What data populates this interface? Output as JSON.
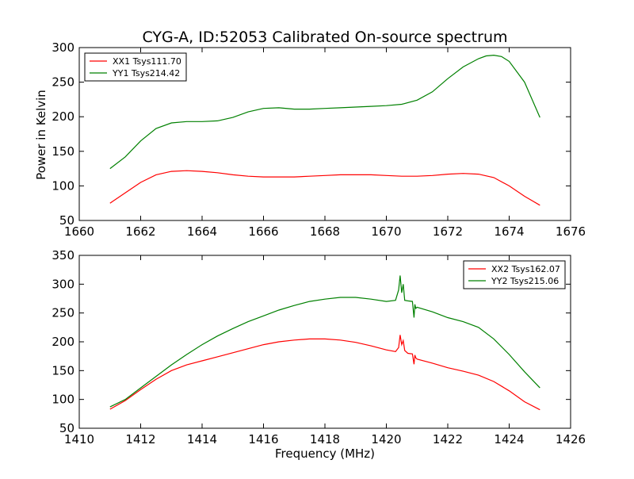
{
  "figure": {
    "title": "CYG-A, ID:52053 Calibrated On-source spectrum",
    "ylabel": "Power in Kelvin",
    "xlabel": "Frequency (MHz)"
  },
  "colors": {
    "xx": "#ff0000",
    "yy": "#008000",
    "axis": "#000000",
    "background": "#ffffff"
  },
  "chart_data": [
    {
      "type": "line",
      "xlim": [
        1660,
        1676
      ],
      "ylim": [
        50,
        300
      ],
      "xticks": [
        1660,
        1662,
        1664,
        1666,
        1668,
        1670,
        1672,
        1674,
        1676
      ],
      "yticks": [
        50,
        100,
        150,
        200,
        250,
        300
      ],
      "legend": "top-left",
      "series": [
        {
          "name": "XX1 Tsys111.70",
          "color": "#ff0000",
          "x": [
            1661.0,
            1661.5,
            1662.0,
            1662.5,
            1663.0,
            1663.5,
            1664.0,
            1664.5,
            1665.0,
            1665.5,
            1666.0,
            1666.5,
            1667.0,
            1667.5,
            1668.0,
            1668.5,
            1669.0,
            1669.5,
            1670.0,
            1670.5,
            1671.0,
            1671.5,
            1672.0,
            1672.5,
            1673.0,
            1673.5,
            1674.0,
            1674.5,
            1675.0
          ],
          "y": [
            75,
            90,
            105,
            116,
            121,
            122,
            121,
            119,
            116,
            114,
            113,
            113,
            113,
            114,
            115,
            116,
            116,
            116,
            115,
            114,
            114,
            115,
            117,
            118,
            117,
            112,
            100,
            85,
            72
          ]
        },
        {
          "name": "YY1 Tsys214.42",
          "color": "#008000",
          "x": [
            1661.0,
            1661.5,
            1662.0,
            1662.5,
            1663.0,
            1663.5,
            1664.0,
            1664.5,
            1665.0,
            1665.5,
            1666.0,
            1666.5,
            1667.0,
            1667.5,
            1668.0,
            1668.5,
            1669.0,
            1669.5,
            1670.0,
            1670.5,
            1671.0,
            1671.5,
            1672.0,
            1672.5,
            1673.0,
            1673.25,
            1673.5,
            1673.75,
            1674.0,
            1674.5,
            1675.0
          ],
          "y": [
            125,
            142,
            165,
            183,
            191,
            193,
            193,
            194,
            199,
            207,
            212,
            213,
            211,
            211,
            212,
            213,
            214,
            215,
            216,
            218,
            224,
            236,
            255,
            272,
            284,
            288,
            289,
            287,
            280,
            250,
            199
          ]
        }
      ]
    },
    {
      "type": "line",
      "xlim": [
        1410,
        1426
      ],
      "ylim": [
        50,
        350
      ],
      "xticks": [
        1410,
        1412,
        1414,
        1416,
        1418,
        1420,
        1422,
        1424,
        1426
      ],
      "yticks": [
        50,
        100,
        150,
        200,
        250,
        300,
        350
      ],
      "legend": "top-right",
      "series": [
        {
          "name": "XX2 Tsys162.07",
          "color": "#ff0000",
          "x": [
            1411.0,
            1411.5,
            1412.0,
            1412.5,
            1413.0,
            1413.5,
            1414.0,
            1414.5,
            1415.0,
            1415.5,
            1416.0,
            1416.5,
            1417.0,
            1417.5,
            1418.0,
            1418.5,
            1419.0,
            1419.5,
            1420.0,
            1420.3,
            1420.4,
            1420.45,
            1420.5,
            1420.55,
            1420.6,
            1420.7,
            1420.85,
            1420.9,
            1420.93,
            1420.96,
            1421.0,
            1421.5,
            1422.0,
            1422.5,
            1423.0,
            1423.5,
            1424.0,
            1424.5,
            1425.0
          ],
          "y": [
            83,
            98,
            117,
            135,
            150,
            160,
            167,
            174,
            181,
            188,
            195,
            200,
            203,
            205,
            205,
            203,
            199,
            193,
            186,
            183,
            190,
            212,
            195,
            202,
            185,
            180,
            179,
            161,
            177,
            172,
            170,
            163,
            155,
            149,
            142,
            131,
            115,
            96,
            82
          ]
        },
        {
          "name": "YY2 Tsys215.06",
          "color": "#008000",
          "x": [
            1411.0,
            1411.5,
            1412.0,
            1412.5,
            1413.0,
            1413.5,
            1414.0,
            1414.5,
            1415.0,
            1415.5,
            1416.0,
            1416.5,
            1417.0,
            1417.5,
            1418.0,
            1418.5,
            1419.0,
            1419.5,
            1420.0,
            1420.3,
            1420.4,
            1420.45,
            1420.5,
            1420.55,
            1420.6,
            1420.7,
            1420.85,
            1420.9,
            1420.93,
            1420.96,
            1421.0,
            1421.5,
            1422.0,
            1422.5,
            1423.0,
            1423.5,
            1424.0,
            1424.5,
            1425.0
          ],
          "y": [
            87,
            100,
            120,
            140,
            160,
            178,
            195,
            210,
            223,
            235,
            245,
            255,
            263,
            270,
            274,
            277,
            277,
            274,
            270,
            272,
            290,
            315,
            285,
            300,
            272,
            271,
            270,
            242,
            265,
            258,
            260,
            252,
            242,
            235,
            225,
            205,
            178,
            148,
            120
          ]
        }
      ]
    }
  ]
}
